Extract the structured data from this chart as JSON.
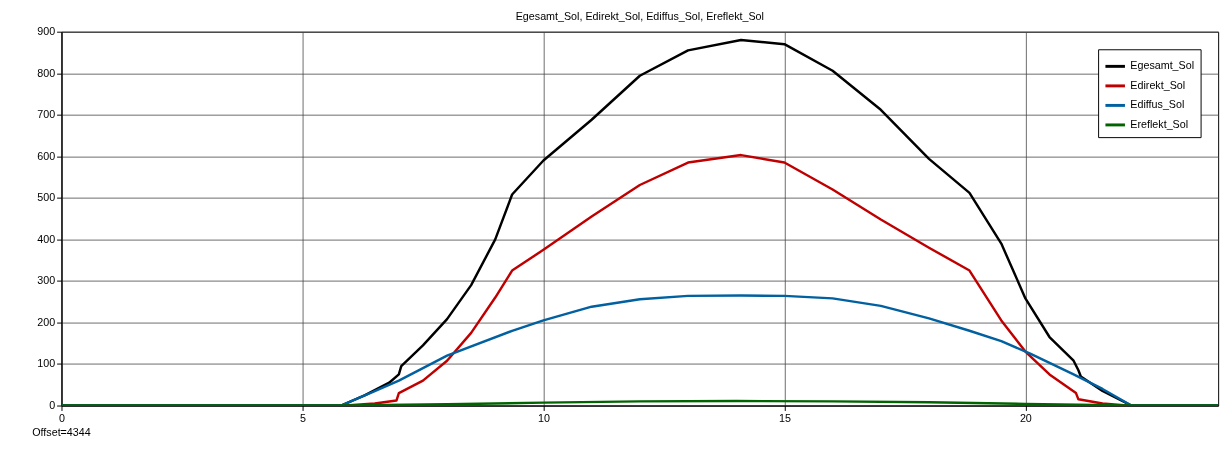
{
  "chart_data": {
    "type": "line",
    "title": "Egesamt_Sol, Edirekt_Sol, Ediffus_Sol, Ereflekt_Sol",
    "series": [
      {
        "name": "Egesamt_Sol",
        "color": "#000000",
        "x": [
          0,
          5.8,
          6.3,
          6.8,
          7.0,
          7.05,
          7.5,
          8,
          8.5,
          9,
          9.35,
          10,
          11,
          12,
          13,
          14.1,
          15,
          16,
          17,
          18,
          18.84,
          19.5,
          20,
          20.5,
          21,
          21.1,
          21.15,
          21.6,
          22.2,
          24
        ],
        "values": [
          0,
          0,
          25,
          55,
          75,
          95,
          145,
          208,
          290,
          400,
          508,
          590,
          688,
          794,
          855,
          880,
          870,
          806,
          712,
          594,
          512,
          390,
          258,
          165,
          108,
          85,
          70,
          35,
          0,
          0
        ]
      },
      {
        "name": "Edirekt_Sol",
        "color": "#c00000",
        "x": [
          0,
          5.9,
          6.5,
          6.95,
          7.0,
          7.5,
          8,
          8.5,
          9,
          9.35,
          10,
          11,
          12,
          13,
          14.1,
          15,
          16,
          17,
          18,
          18.84,
          19.5,
          20,
          20.5,
          21.05,
          21.1,
          21.6,
          22.1,
          24
        ],
        "values": [
          0,
          0,
          5,
          12,
          30,
          60,
          108,
          175,
          260,
          325,
          375,
          455,
          531,
          585,
          603,
          585,
          520,
          448,
          380,
          325,
          205,
          130,
          75,
          30,
          15,
          5,
          0,
          0
        ]
      },
      {
        "name": "Ediffus_Sol",
        "color": "#0060a0",
        "x": [
          0,
          5.8,
          6.5,
          7,
          8,
          9.35,
          10,
          11,
          12,
          13,
          14.1,
          15,
          16,
          17,
          18,
          18.84,
          19.5,
          20.1,
          21,
          21.6,
          22.2,
          24
        ],
        "values": [
          0,
          0,
          35,
          60,
          120,
          180,
          205,
          238,
          256,
          264,
          265,
          264,
          258,
          240,
          210,
          180,
          155,
          125,
          75,
          40,
          0,
          0
        ]
      },
      {
        "name": "Ereflekt_Sol",
        "color": "#006400",
        "x": [
          0,
          5.8,
          8,
          10,
          12,
          14,
          16,
          18,
          20,
          22.2,
          24
        ],
        "values": [
          0,
          0,
          3,
          7,
          10,
          11,
          10,
          8,
          4,
          0,
          0
        ]
      }
    ],
    "xlim": [
      0,
      24
    ],
    "xticks": [
      0,
      5,
      10,
      15,
      20
    ],
    "ylim": [
      0,
      900
    ],
    "yticks": [
      0,
      100,
      200,
      300,
      400,
      500,
      600,
      700,
      800,
      900
    ],
    "grid": true,
    "legend": "top right",
    "line_style": "solid",
    "annotations": [
      "Offset=4344"
    ]
  }
}
